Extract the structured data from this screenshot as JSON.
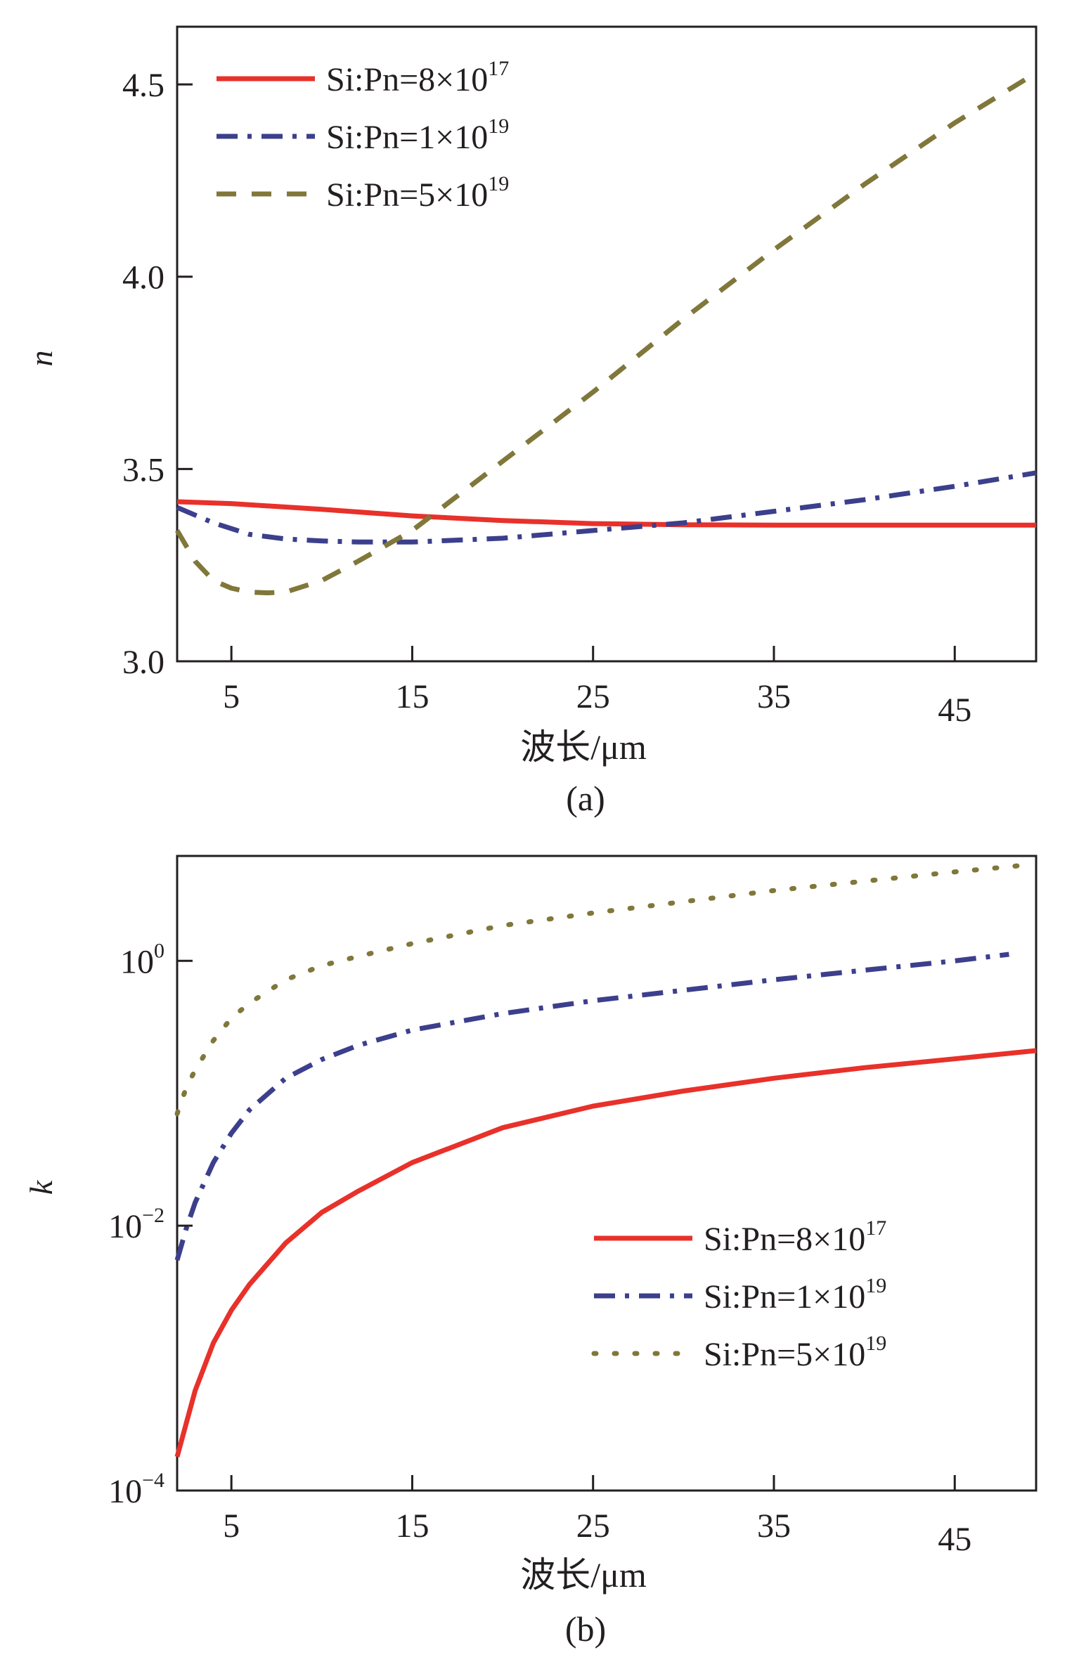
{
  "chart_data": [
    {
      "panel": "a",
      "caption": "(a)",
      "type": "line",
      "title": "",
      "xlabel": "波长/μm",
      "ylabel": "n",
      "xlim": [
        2,
        49.5
      ],
      "ylim": [
        3.0,
        4.65
      ],
      "yscale": "linear",
      "xticks": [
        {
          "value": 5,
          "label": "5"
        },
        {
          "value": 15,
          "label": "15"
        },
        {
          "value": 25,
          "label": "25"
        },
        {
          "value": 35,
          "label": "35"
        },
        {
          "value": 45,
          "label": "45"
        }
      ],
      "yticks": [
        {
          "value": 3.0,
          "label": "3.0"
        },
        {
          "value": 3.5,
          "label": "3.5"
        },
        {
          "value": 4.0,
          "label": "4.0"
        },
        {
          "value": 4.5,
          "label": "4.5"
        }
      ],
      "legend_position": "top-left",
      "series": [
        {
          "name": "Si:Pn=8×10¹⁷",
          "label_base": "Si:Pn=8×10",
          "label_exp": "17",
          "style": "solid",
          "color": "#e8312a",
          "x": [
            2,
            5,
            10,
            15,
            20,
            25,
            30,
            35,
            40,
            45,
            49.5
          ],
          "y": [
            3.415,
            3.41,
            3.395,
            3.378,
            3.366,
            3.358,
            3.355,
            3.354,
            3.354,
            3.354,
            3.354
          ]
        },
        {
          "name": "Si:Pn=1×10¹⁹",
          "label_base": "Si:Pn=1×10",
          "label_exp": "19",
          "style": "dashdot",
          "color": "#3c3f8c",
          "x": [
            2,
            4,
            6,
            8,
            10,
            12,
            15,
            20,
            25,
            30,
            35,
            40,
            45,
            49.5
          ],
          "y": [
            3.4,
            3.36,
            3.33,
            3.318,
            3.313,
            3.31,
            3.31,
            3.32,
            3.34,
            3.36,
            3.39,
            3.42,
            3.455,
            3.49
          ]
        },
        {
          "name": "Si:Pn=5×10¹⁹",
          "label_base": "Si:Pn=5×10",
          "label_exp": "19",
          "style": "dashed",
          "color": "#80773a",
          "x": [
            2,
            3,
            4,
            5,
            6,
            7,
            8,
            10,
            12,
            15,
            20,
            25,
            30,
            35,
            40,
            45,
            49.5
          ],
          "y": [
            3.34,
            3.26,
            3.21,
            3.19,
            3.18,
            3.178,
            3.18,
            3.21,
            3.26,
            3.34,
            3.52,
            3.7,
            3.89,
            4.07,
            4.24,
            4.4,
            4.53
          ]
        }
      ]
    },
    {
      "panel": "b",
      "caption": "(b)",
      "type": "line",
      "title": "",
      "xlabel": "波长/μm",
      "ylabel": "k",
      "xlim": [
        2,
        49.5
      ],
      "ylim": [
        0.0001,
        6.2
      ],
      "yscale": "log",
      "xticks": [
        {
          "value": 5,
          "label": "5"
        },
        {
          "value": 15,
          "label": "15"
        },
        {
          "value": 25,
          "label": "25"
        },
        {
          "value": 35,
          "label": "35"
        },
        {
          "value": 45,
          "label": "45"
        }
      ],
      "yticks": [
        {
          "value": 1,
          "base": "10",
          "exp": "0"
        },
        {
          "value": 0.01,
          "base": "10",
          "exp": "−2"
        },
        {
          "value": 0.0001,
          "base": "10",
          "exp": "−4"
        }
      ],
      "legend_position": "lower-right",
      "series": [
        {
          "name": "Si:Pn=8×10¹⁷",
          "label_base": "Si:Pn=8×10",
          "label_exp": "17",
          "style": "solid",
          "color": "#e8312a",
          "x": [
            2,
            3,
            4,
            5,
            6,
            8,
            10,
            12,
            15,
            20,
            25,
            30,
            35,
            40,
            45,
            49.5
          ],
          "y": [
            0.00018,
            0.00057,
            0.0013,
            0.0023,
            0.0036,
            0.0074,
            0.0126,
            0.0182,
            0.03,
            0.055,
            0.08,
            0.104,
            0.13,
            0.156,
            0.182,
            0.21
          ]
        },
        {
          "name": "Si:Pn=1×10¹⁹",
          "label_base": "Si:Pn=1×10",
          "label_exp": "19",
          "style": "dashdot",
          "color": "#3c3f8c",
          "x": [
            2,
            2.5,
            3,
            4,
            5,
            6,
            8,
            10,
            12,
            15,
            20,
            25,
            30,
            35,
            40,
            45,
            48
          ],
          "y": [
            0.0055,
            0.0095,
            0.015,
            0.03,
            0.05,
            0.075,
            0.13,
            0.18,
            0.23,
            0.3,
            0.4,
            0.5,
            0.6,
            0.72,
            0.85,
            1.0,
            1.12
          ]
        },
        {
          "name": "Si:Pn=5×10¹⁹",
          "label_base": "Si:Pn=5×10",
          "label_exp": "19",
          "style": "dotted",
          "color": "#80773a",
          "x": [
            2,
            2.5,
            3,
            4,
            5,
            6,
            8,
            10,
            12,
            15,
            20,
            25,
            30,
            35,
            40,
            45,
            49
          ],
          "y": [
            0.07,
            0.11,
            0.15,
            0.25,
            0.37,
            0.48,
            0.72,
            0.92,
            1.08,
            1.35,
            1.85,
            2.3,
            2.8,
            3.4,
            4.0,
            4.7,
            5.3
          ]
        }
      ]
    }
  ]
}
